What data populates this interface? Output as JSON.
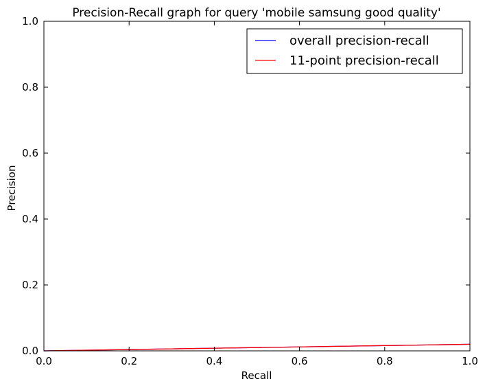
{
  "chart_data": {
    "type": "line",
    "title": "Precision-Recall graph for query 'mobile samsung good quality'",
    "xlabel": "Recall",
    "ylabel": "Precision",
    "xlim": [
      0.0,
      1.0
    ],
    "ylim": [
      0.0,
      1.0
    ],
    "xticks": [
      "0.0",
      "0.2",
      "0.4",
      "0.6",
      "0.8",
      "1.0"
    ],
    "yticks": [
      "0.0",
      "0.2",
      "0.4",
      "0.6",
      "0.8",
      "1.0"
    ],
    "grid": false,
    "legend_position": "top-right",
    "series": [
      {
        "name": "overall precision-recall",
        "color": "#0000ff",
        "x": [
          0.0,
          0.1,
          0.2,
          0.3,
          0.4,
          0.5,
          0.6,
          0.7,
          0.8,
          0.9,
          1.0
        ],
        "y": [
          0.0,
          0.002,
          0.004,
          0.006,
          0.008,
          0.01,
          0.012,
          0.014,
          0.016,
          0.018,
          0.02
        ]
      },
      {
        "name": "11-point precision-recall",
        "color": "#ff0000",
        "x": [
          0.0,
          0.1,
          0.2,
          0.3,
          0.4,
          0.5,
          0.6,
          0.7,
          0.8,
          0.9,
          1.0
        ],
        "y": [
          0.0,
          0.002,
          0.004,
          0.006,
          0.008,
          0.01,
          0.012,
          0.014,
          0.016,
          0.018,
          0.02
        ]
      }
    ]
  }
}
